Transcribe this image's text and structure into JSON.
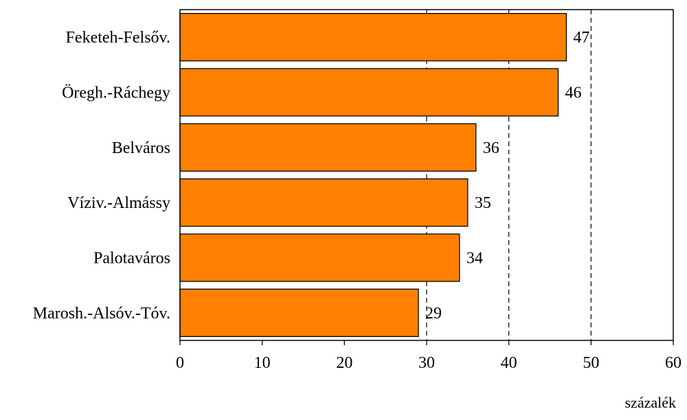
{
  "chart_data": {
    "type": "bar",
    "orientation": "horizontal",
    "categories": [
      "Feketeh-Felsőv.",
      "Öregh.-Ráchegy",
      "Belváros",
      "Víziv.-Almássy",
      "Palotaváros",
      "Marosh.-Alsóv.-Tóv."
    ],
    "values": [
      47,
      46,
      36,
      35,
      34,
      29
    ],
    "value_labels": [
      "47",
      "46",
      "36",
      "35",
      "34",
      "29"
    ],
    "title": "",
    "xlabel": "százalék",
    "ylabel": "",
    "xlim": [
      0,
      60
    ],
    "xticks": [
      0,
      10,
      20,
      30,
      40,
      50,
      60
    ],
    "xtick_labels": [
      "0",
      "10",
      "20",
      "30",
      "40",
      "50",
      "60"
    ],
    "grid": "dashed vertical lines at 30, 40, 50",
    "gridlines": [
      30,
      40,
      50
    ],
    "legend": "none",
    "colors": {
      "bar_fill": "#FF8000",
      "bar_stroke": "#000000",
      "grid": "#000000"
    }
  }
}
